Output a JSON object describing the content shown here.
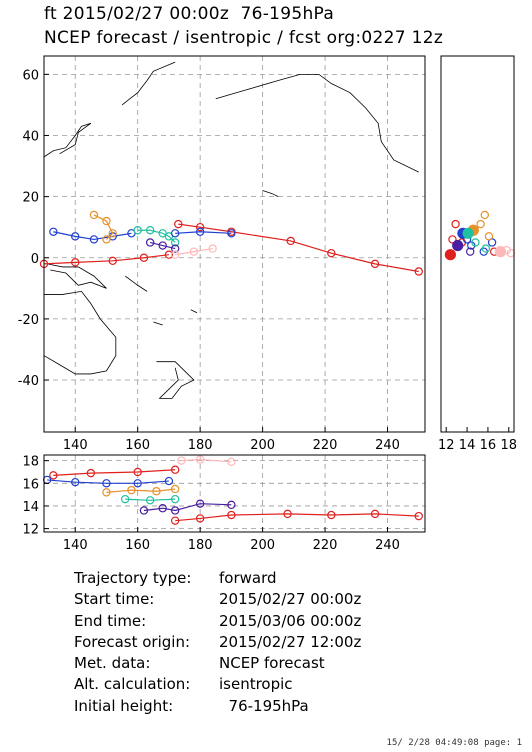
{
  "header": {
    "line1": "ft 2015/02/27 00:00z  76-195hPa",
    "line2": "NCEP forecast / isentropic / fcst org:0227 12z"
  },
  "chart_data": [
    {
      "type": "line",
      "panel": "map",
      "xlim": [
        130,
        252
      ],
      "ylim": [
        -57,
        66
      ],
      "xticks": [
        "140",
        "160",
        "180",
        "200",
        "220",
        "240"
      ],
      "yticks": [
        "60",
        "40",
        "20",
        "0",
        "-20",
        "-40"
      ],
      "series": [
        {
          "color": "#e0201c",
          "points": [
            [
              173,
              11
            ],
            [
              180,
              10
            ],
            [
              190,
              8.5
            ],
            [
              209,
              5.5
            ],
            [
              222,
              1.5
            ],
            [
              236,
              -2
            ],
            [
              250,
              -4.5
            ]
          ]
        },
        {
          "color": "#e0201c",
          "points": [
            [
              130,
              -2
            ],
            [
              140,
              -1.5
            ],
            [
              152,
              -1
            ],
            [
              162,
              0
            ],
            [
              170,
              1
            ]
          ]
        },
        {
          "color": "#2040d0",
          "points": [
            [
              133,
              8.5
            ],
            [
              140,
              7
            ],
            [
              146,
              6
            ],
            [
              152,
              7
            ],
            [
              158,
              8
            ]
          ]
        },
        {
          "color": "#e8902a",
          "points": [
            [
              146,
              14
            ],
            [
              150,
              12
            ],
            [
              152,
              8
            ],
            [
              150,
              6
            ]
          ]
        },
        {
          "color": "#20c0a0",
          "points": [
            [
              160,
              9
            ],
            [
              164,
              9
            ],
            [
              168,
              8
            ],
            [
              170,
              7
            ],
            [
              172,
              5
            ]
          ]
        },
        {
          "color": "#2040d0",
          "points": [
            [
              172,
              8
            ],
            [
              180,
              8.5
            ],
            [
              190,
              8
            ]
          ]
        },
        {
          "color": "#4a20a0",
          "points": [
            [
              164,
              5
            ],
            [
              168,
              4
            ],
            [
              172,
              3
            ]
          ]
        },
        {
          "color": "#ffb8b8",
          "points": [
            [
              172,
              1
            ],
            [
              178,
              2
            ],
            [
              184,
              3
            ]
          ]
        }
      ]
    },
    {
      "type": "scatter",
      "panel": "side",
      "xlim": [
        11.5,
        18.5
      ],
      "ylim": [
        -57,
        66
      ],
      "xticks": [
        "12",
        "14",
        "16",
        "18"
      ],
      "series": [
        {
          "color": "#e0201c",
          "points": [
            [
              12.4,
              1
            ],
            [
              12.6,
              6
            ],
            [
              12.9,
              11
            ],
            [
              13.5,
              5
            ],
            [
              16.6,
              2
            ]
          ]
        },
        {
          "color": "#2040d0",
          "points": [
            [
              13.6,
              8
            ],
            [
              14.0,
              6
            ],
            [
              14.4,
              4
            ],
            [
              15.6,
              2
            ],
            [
              16.4,
              5
            ]
          ]
        },
        {
          "color": "#e8902a",
          "points": [
            [
              14.6,
              9
            ],
            [
              15.3,
              11
            ],
            [
              15.7,
              14
            ],
            [
              16.1,
              7
            ]
          ]
        },
        {
          "color": "#20c0a0",
          "points": [
            [
              14.1,
              8
            ],
            [
              14.8,
              5
            ],
            [
              15.8,
              3
            ]
          ]
        },
        {
          "color": "#4a20a0",
          "points": [
            [
              13.1,
              4
            ],
            [
              14.3,
              2
            ]
          ]
        },
        {
          "color": "#ffb8b8",
          "points": [
            [
              17.2,
              2
            ],
            [
              17.8,
              2.5
            ],
            [
              18.2,
              1.5
            ]
          ]
        }
      ]
    },
    {
      "type": "line",
      "panel": "bottom",
      "xlim": [
        130,
        252
      ],
      "ylim": [
        11.7,
        18.5
      ],
      "xticks": [
        "140",
        "160",
        "180",
        "200",
        "220",
        "240"
      ],
      "yticks": [
        "18",
        "16",
        "14",
        "12"
      ],
      "series": [
        {
          "color": "#e0201c",
          "points": [
            [
              133,
              16.7
            ],
            [
              145,
              16.9
            ],
            [
              160,
              17
            ],
            [
              172,
              17.2
            ]
          ]
        },
        {
          "color": "#2040d0",
          "points": [
            [
              131,
              16.3
            ],
            [
              140,
              16.1
            ],
            [
              150,
              16
            ],
            [
              160,
              16
            ],
            [
              170,
              16.2
            ]
          ]
        },
        {
          "color": "#e8902a",
          "points": [
            [
              150,
              15.2
            ],
            [
              158,
              15.4
            ],
            [
              166,
              15.3
            ],
            [
              172,
              15.5
            ]
          ]
        },
        {
          "color": "#20c0a0",
          "points": [
            [
              156,
              14.6
            ],
            [
              164,
              14.5
            ],
            [
              172,
              14.6
            ]
          ]
        },
        {
          "color": "#4a20a0",
          "points": [
            [
              162,
              13.6
            ],
            [
              168,
              13.8
            ],
            [
              172,
              13.6
            ],
            [
              180,
              14.2
            ],
            [
              190,
              14.1
            ]
          ]
        },
        {
          "color": "#e0201c",
          "points": [
            [
              172,
              12.7
            ],
            [
              180,
              12.9
            ],
            [
              190,
              13.2
            ],
            [
              208,
              13.3
            ],
            [
              222,
              13.2
            ],
            [
              236,
              13.3
            ],
            [
              250,
              13.1
            ]
          ]
        },
        {
          "color": "#ffb8b8",
          "points": [
            [
              174,
              18
            ],
            [
              180,
              18.1
            ],
            [
              190,
              17.9
            ]
          ]
        }
      ]
    }
  ],
  "info": [
    {
      "k": "Trajectory type:",
      "v": "forward"
    },
    {
      "k": "Start time:",
      "v": "2015/02/27 00:00z"
    },
    {
      "k": "End time:",
      "v": "2015/03/06 00:00z"
    },
    {
      "k": "Forecast origin:",
      "v": "2015/02/27 12:00z"
    },
    {
      "k": "Met. data:",
      "v": "NCEP forecast"
    },
    {
      "k": "Alt. calculation:",
      "v": "isentropic"
    },
    {
      "k": "Initial height:",
      "v": "  76-195hPa"
    }
  ],
  "footer": "15/ 2/28 04:49:08 page: 1"
}
